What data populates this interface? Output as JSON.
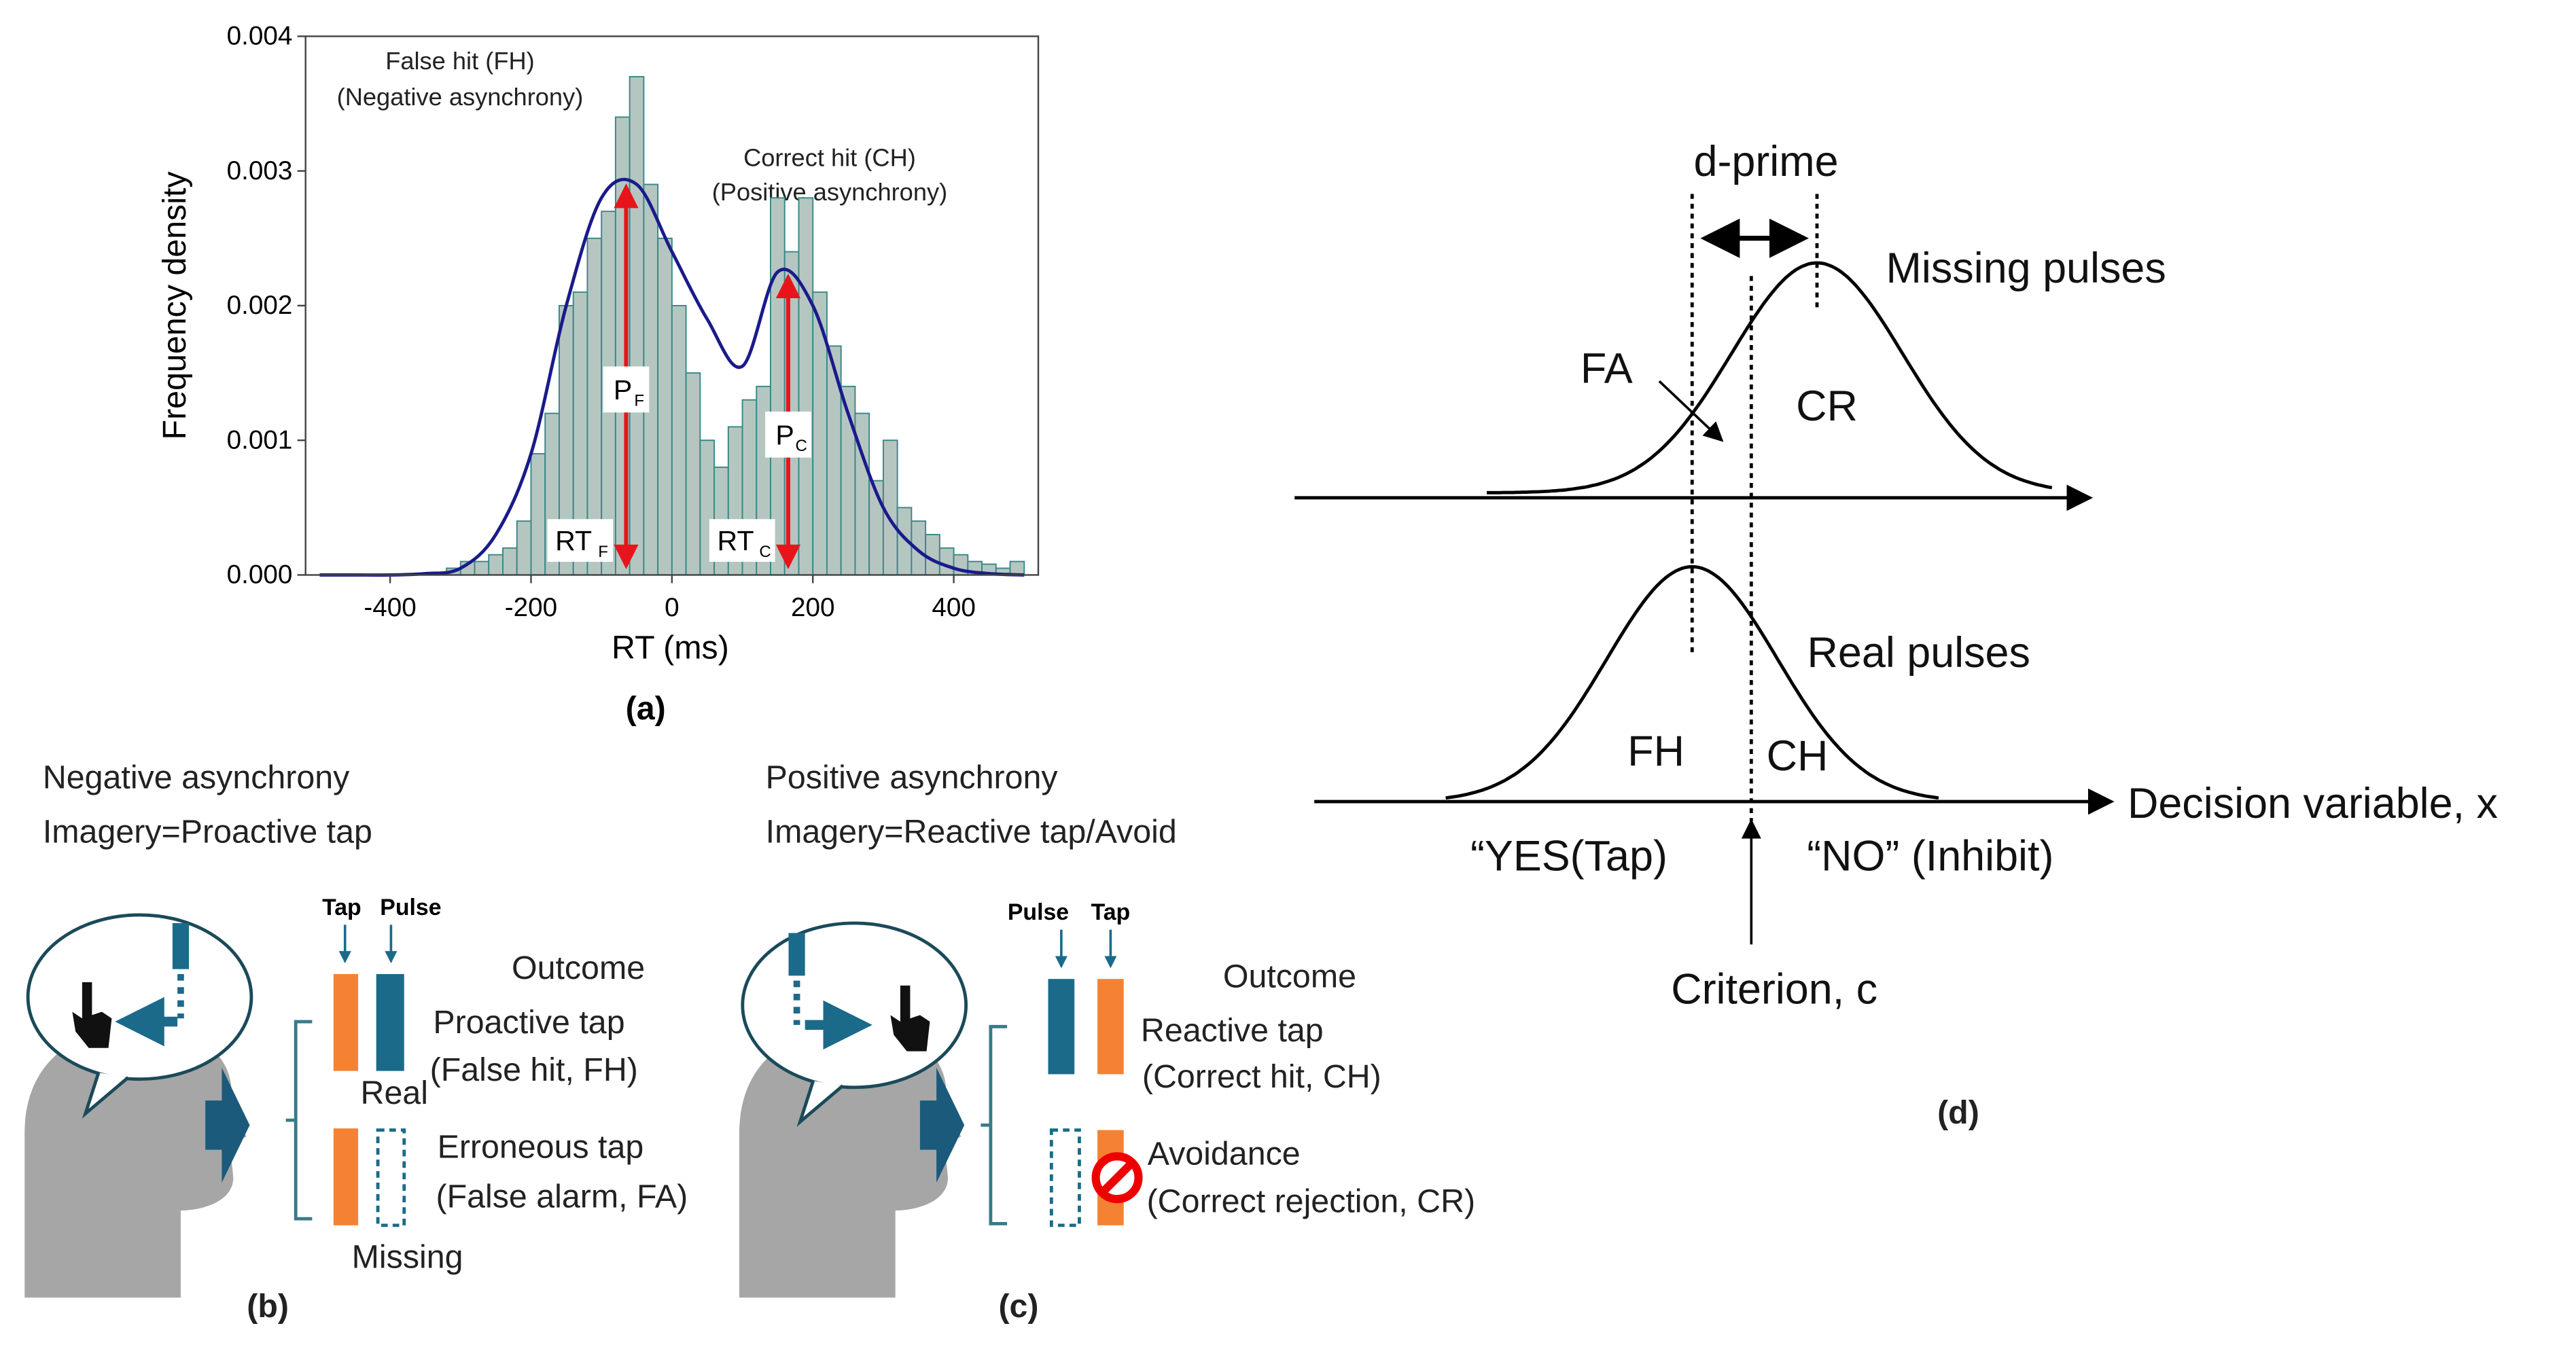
{
  "chart_data": {
    "type": "histogram",
    "title": "(a)",
    "xlabel": "RT (ms)",
    "ylabel": "Frequency density",
    "bins": [
      -320,
      -300,
      -280,
      -260,
      -240,
      -220,
      -200,
      -180,
      -160,
      -140,
      -120,
      -100,
      -80,
      -60,
      -40,
      -20,
      0,
      20,
      40,
      60,
      80,
      100,
      120,
      140,
      160,
      180,
      200,
      220,
      240,
      260,
      280,
      300,
      320,
      340,
      360,
      380,
      400,
      420,
      440,
      460,
      480,
      500
    ],
    "values": [
      5e-05,
      0.0001,
      0.0001,
      0.00015,
      0.0002,
      0.0004,
      0.0009,
      0.0012,
      0.002,
      0.0021,
      0.0025,
      0.0027,
      0.0034,
      0.0037,
      0.0029,
      0.0025,
      0.002,
      0.0015,
      0.001,
      0.0008,
      0.0011,
      0.0013,
      0.0014,
      0.0028,
      0.0024,
      0.0028,
      0.0021,
      0.0017,
      0.0014,
      0.0012,
      0.0007,
      0.001,
      0.0005,
      0.0004,
      0.0003,
      0.0002,
      0.00015,
      0.0001,
      8e-05,
      5e-05,
      0.0001
    ],
    "color": "#b5c6c1",
    "edge_color": "#3a8888",
    "curve": {
      "color": "#1a1a8c",
      "x": [
        -500,
        -450,
        -400,
        -350,
        -300,
        -250,
        -200,
        -150,
        -100,
        -50,
        0,
        50,
        100,
        150,
        200,
        250,
        300,
        350,
        400,
        450,
        500
      ],
      "values": [
        0,
        0,
        0,
        1e-05,
        5e-05,
        0.0003,
        0.0009,
        0.002,
        0.0028,
        0.0029,
        0.0024,
        0.0019,
        0.00155,
        0.00225,
        0.002,
        0.0012,
        0.0005,
        0.00018,
        5e-05,
        1e-05,
        0
      ]
    },
    "peaks": [
      {
        "x": -65,
        "y": 0.00295,
        "p": "P",
        "p_sub": "F",
        "rt": "RT",
        "rt_sub": "F"
      },
      {
        "x": 165,
        "y": 0.00228,
        "p": "P",
        "p_sub": "C",
        "rt": "RT",
        "rt_sub": "C"
      }
    ],
    "peak_color": "#e8141c",
    "annotations": [
      "False hit (FH)",
      "(Negative asynchrony)",
      "Correct hit (CH)",
      "(Positive asynchrony)"
    ],
    "xlim": [
      -520,
      520
    ],
    "ylim": [
      0,
      0.004
    ],
    "xticks": [
      -400,
      -200,
      0,
      200,
      400
    ],
    "yticks": [
      {
        "value": 0,
        "label": "0.000"
      },
      0.001,
      0.002,
      0.003,
      0.004
    ]
  },
  "panel_b": {
    "heading": [
      "Negative asynchrony",
      "Imagery=Proactive tap"
    ],
    "bar_labels": [
      "Tap",
      "Pulse"
    ],
    "outcome": "Outcome",
    "rows": [
      {
        "title": "Proactive tap",
        "detail": "(False hit, FH)"
      },
      {
        "title": "Erroneous tap",
        "detail": "(False alarm, FA)"
      }
    ],
    "pulse_labels": [
      "Real",
      "Missing"
    ],
    "label": "(b)"
  },
  "panel_c": {
    "heading": [
      "Positive asynchrony",
      "Imagery=Reactive tap/Avoid"
    ],
    "bar_labels": [
      "Pulse",
      "Tap"
    ],
    "outcome": "Outcome",
    "rows": [
      {
        "title": "Reactive tap",
        "detail": "(Correct hit, CH)"
      },
      {
        "title": "Avoidance",
        "detail": "(Correct rejection, CR)"
      }
    ],
    "label": "(c)"
  },
  "panel_d": {
    "d_prime": "d-prime",
    "missing": "Missing pulses",
    "real": "Real pulses",
    "fa": "FA",
    "cr": "CR",
    "fh": "FH",
    "ch": "CH",
    "axis": "Decision variable, x",
    "yes": "“YES(Tap)",
    "no": "“NO” (Inhibit)",
    "criterion": "Criterion,  c",
    "label": "(d)"
  }
}
